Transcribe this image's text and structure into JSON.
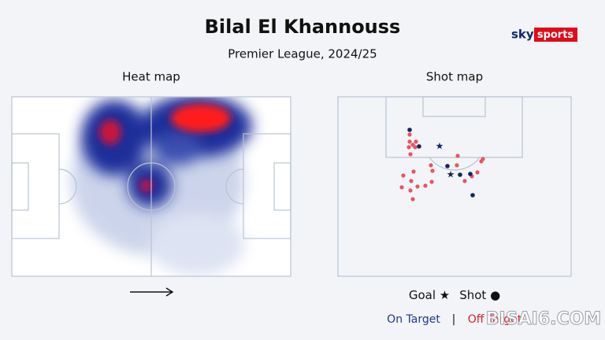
{
  "header": {
    "title": "Bilal El Khannouss",
    "subtitle": "Premier League, 2024/25",
    "brand": {
      "sky": "sky",
      "sports": "sports"
    }
  },
  "heat_map": {
    "title": "Heat map"
  },
  "shot_map": {
    "title": "Shot map"
  },
  "legend": {
    "goal": "Goal ★",
    "shot": "Shot ●",
    "on_target": "On Target",
    "separator": "|",
    "off_target": "Off Target"
  },
  "watermark": "BISAI6.COM"
}
